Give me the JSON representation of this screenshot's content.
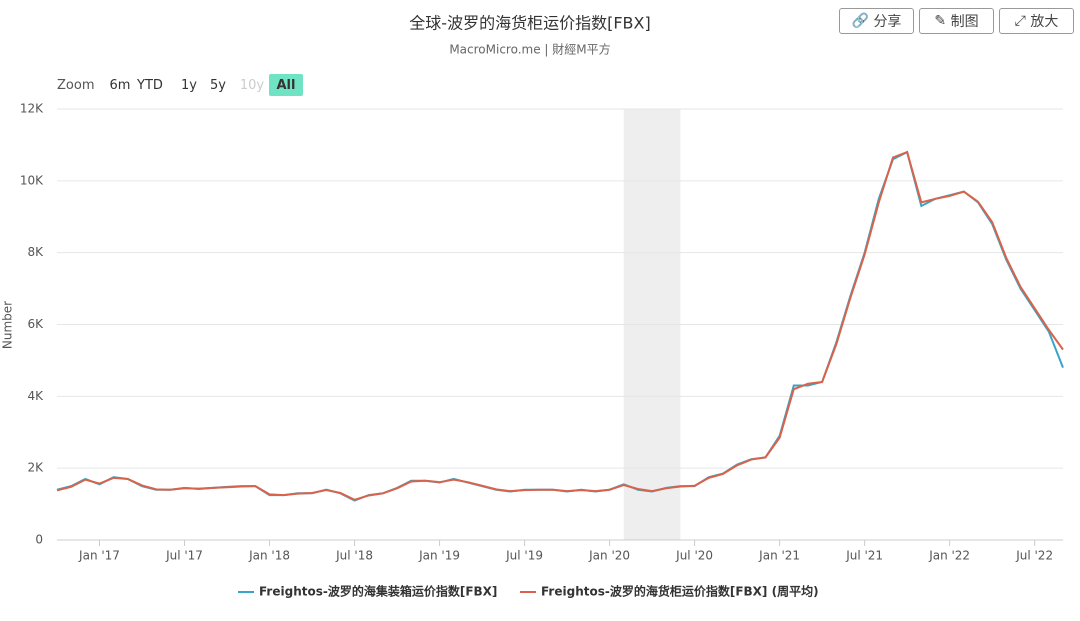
{
  "toolbar": {
    "buttons": [
      "分享",
      "制图",
      "放大"
    ]
  },
  "zoom": {
    "label": "Zoom",
    "options": [
      "6m",
      "YTD",
      "1y",
      "5y",
      "10y",
      "All"
    ],
    "active": "All",
    "disabled": "10y"
  },
  "chart_data": {
    "type": "line",
    "title": "全球-波罗的海货柜运价指数[FBX]",
    "subtitle": "MacroMicro.me | 財經M平方",
    "ylabel": "Number",
    "x": [
      "2016-10",
      "2016-11",
      "2016-12",
      "2017-01",
      "2017-02",
      "2017-03",
      "2017-04",
      "2017-05",
      "2017-06",
      "2017-07",
      "2017-08",
      "2017-09",
      "2017-10",
      "2017-11",
      "2017-12",
      "2018-01",
      "2018-02",
      "2018-03",
      "2018-04",
      "2018-05",
      "2018-06",
      "2018-07",
      "2018-08",
      "2018-09",
      "2018-10",
      "2018-11",
      "2018-12",
      "2019-01",
      "2019-02",
      "2019-03",
      "2019-04",
      "2019-05",
      "2019-06",
      "2019-07",
      "2019-08",
      "2019-09",
      "2019-10",
      "2019-11",
      "2019-12",
      "2020-01",
      "2020-02",
      "2020-03",
      "2020-04",
      "2020-05",
      "2020-06",
      "2020-07",
      "2020-08",
      "2020-09",
      "2020-10",
      "2020-11",
      "2020-12",
      "2021-01",
      "2021-02",
      "2021-03",
      "2021-04",
      "2021-05",
      "2021-06",
      "2021-07",
      "2021-08",
      "2021-09",
      "2021-10",
      "2021-11",
      "2021-12",
      "2022-01",
      "2022-02",
      "2022-03",
      "2022-04",
      "2022-05",
      "2022-06",
      "2022-07",
      "2022-08",
      "2022-09"
    ],
    "series": [
      {
        "name": "Freightos-波罗的海集装箱运价指数[FBX]",
        "color": "#3aa3c8",
        "values": [
          1400,
          1500,
          1700,
          1550,
          1750,
          1700,
          1500,
          1400,
          1400,
          1450,
          1420,
          1450,
          1480,
          1500,
          1500,
          1250,
          1250,
          1300,
          1300,
          1400,
          1300,
          1100,
          1250,
          1300,
          1450,
          1650,
          1650,
          1600,
          1700,
          1600,
          1500,
          1400,
          1350,
          1400,
          1400,
          1400,
          1350,
          1400,
          1350,
          1400,
          1550,
          1400,
          1350,
          1450,
          1500,
          1500,
          1750,
          1850,
          2100,
          2250,
          2300,
          2900,
          4300,
          4300,
          4400,
          5500,
          6800,
          8000,
          9500,
          10600,
          10800,
          9300,
          9500,
          9600,
          9700,
          9400,
          8800,
          7800,
          7000,
          6400,
          5800,
          4800
        ]
      },
      {
        "name": "Freightos-波罗的海货柜运价指数[FBX] (周平均)",
        "color": "#d9634a",
        "values": [
          1380,
          1480,
          1680,
          1570,
          1730,
          1700,
          1520,
          1410,
          1400,
          1440,
          1430,
          1450,
          1470,
          1490,
          1500,
          1270,
          1250,
          1290,
          1310,
          1390,
          1310,
          1120,
          1240,
          1300,
          1440,
          1630,
          1650,
          1610,
          1680,
          1610,
          1510,
          1410,
          1360,
          1390,
          1400,
          1400,
          1360,
          1390,
          1360,
          1400,
          1530,
          1420,
          1360,
          1440,
          1490,
          1510,
          1730,
          1840,
          2080,
          2240,
          2300,
          2850,
          4200,
          4350,
          4400,
          5450,
          6750,
          7950,
          9400,
          10650,
          10800,
          9400,
          9500,
          9580,
          9700,
          9420,
          8850,
          7850,
          7050,
          6450,
          5850,
          5300
        ]
      }
    ],
    "xlim": [
      "2016-10",
      "2022-09"
    ],
    "xticks": [
      {
        "value": "2017-01",
        "label": "Jan '17"
      },
      {
        "value": "2017-07",
        "label": "Jul '17"
      },
      {
        "value": "2018-01",
        "label": "Jan '18"
      },
      {
        "value": "2018-07",
        "label": "Jul '18"
      },
      {
        "value": "2019-01",
        "label": "Jan '19"
      },
      {
        "value": "2019-07",
        "label": "Jul '19"
      },
      {
        "value": "2020-01",
        "label": "Jan '20"
      },
      {
        "value": "2020-07",
        "label": "Jul '20"
      },
      {
        "value": "2021-01",
        "label": "Jan '21"
      },
      {
        "value": "2021-07",
        "label": "Jul '21"
      },
      {
        "value": "2022-01",
        "label": "Jan '22"
      },
      {
        "value": "2022-07",
        "label": "Jul '22"
      }
    ],
    "ylim": [
      0,
      12000
    ],
    "yticks": [
      0,
      {
        "value": 2000,
        "label": "2K"
      },
      {
        "value": 4000,
        "label": "4K"
      },
      {
        "value": 6000,
        "label": "6K"
      },
      {
        "value": 8000,
        "label": "8K"
      },
      {
        "value": 10000,
        "label": "10K"
      },
      {
        "value": 12000,
        "label": "12K"
      }
    ],
    "shaded": [
      "2020-02",
      "2020-06"
    ],
    "grid": true,
    "legend": "bottom"
  }
}
